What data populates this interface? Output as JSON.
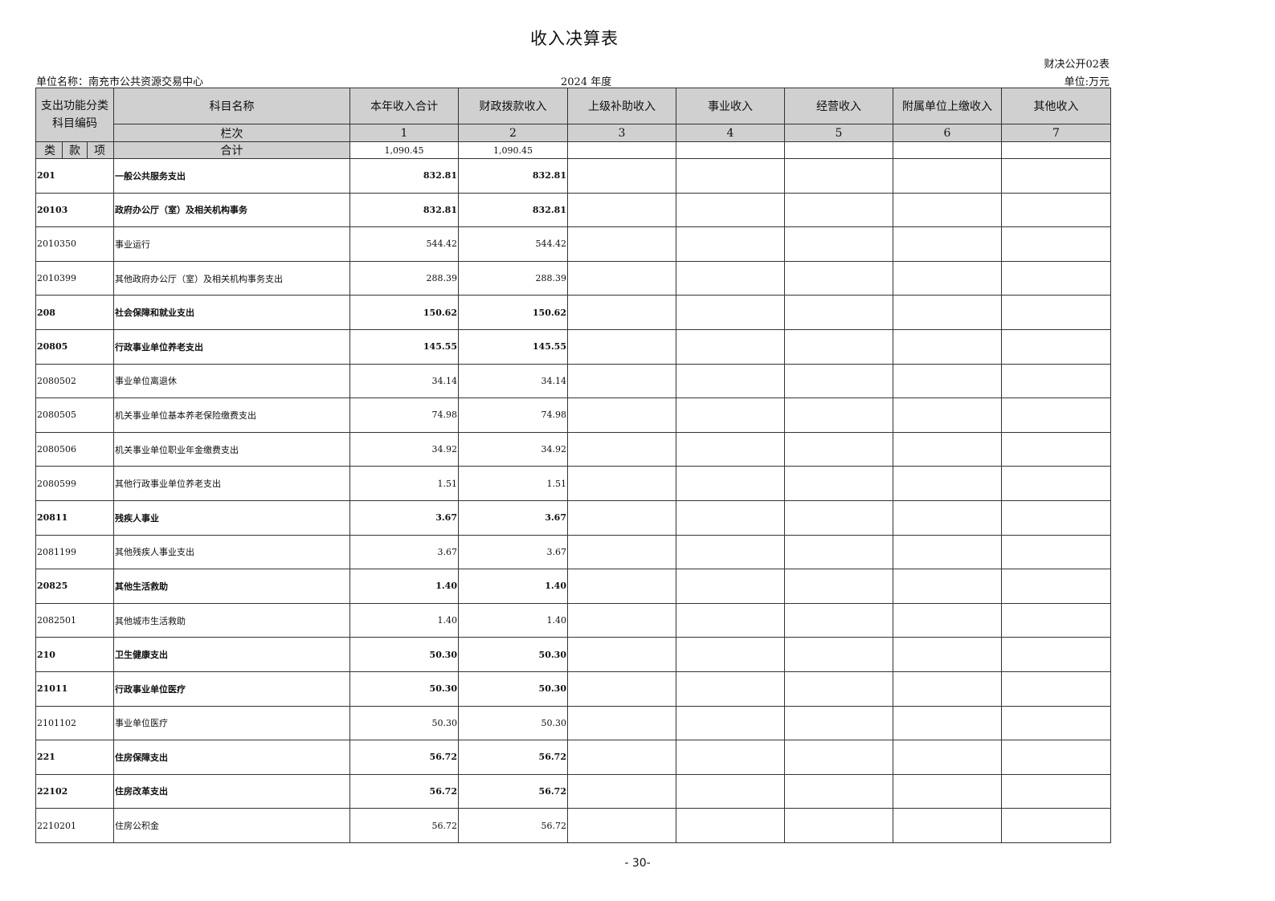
{
  "title": "收入决算表",
  "form_no": "财决公开02表",
  "unit_name": "单位名称：南充市公共资源交易中心",
  "year": "2024 年度",
  "unit": "单位:万元",
  "page_number": "- 30-",
  "header": {
    "code_header": "支出功能分类科目编码",
    "columns": [
      "科目名称",
      "本年收入合计",
      "财政拨款收入",
      "上级补助收入",
      "事业收入",
      "经营收入",
      "附属单位上缴收入",
      "其他收入"
    ],
    "column_index_label": "栏次",
    "column_indexes": [
      "1",
      "2",
      "3",
      "4",
      "5",
      "6",
      "7"
    ],
    "sub_codes": [
      "类",
      "款",
      "项"
    ],
    "total_label": "合计",
    "total_values": [
      "1,090.45",
      "1,090.45",
      "",
      "",
      "",
      "",
      ""
    ]
  },
  "rows": [
    {
      "code": "201",
      "name": "一般公共服务支出",
      "total": "832.81",
      "fiscal": "832.81",
      "bold": true
    },
    {
      "code": "20103",
      "name": "政府办公厅（室）及相关机构事务",
      "total": "832.81",
      "fiscal": "832.81",
      "bold": true
    },
    {
      "code": "2010350",
      "name": "事业运行",
      "total": "544.42",
      "fiscal": "544.42",
      "bold": false
    },
    {
      "code": "2010399",
      "name": "其他政府办公厅（室）及相关机构事务支出",
      "total": "288.39",
      "fiscal": "288.39",
      "bold": false
    },
    {
      "code": "208",
      "name": "社会保障和就业支出",
      "total": "150.62",
      "fiscal": "150.62",
      "bold": true
    },
    {
      "code": "20805",
      "name": "行政事业单位养老支出",
      "total": "145.55",
      "fiscal": "145.55",
      "bold": true
    },
    {
      "code": "2080502",
      "name": "事业单位离退休",
      "total": "34.14",
      "fiscal": "34.14",
      "bold": false
    },
    {
      "code": "2080505",
      "name": "机关事业单位基本养老保险缴费支出",
      "total": "74.98",
      "fiscal": "74.98",
      "bold": false
    },
    {
      "code": "2080506",
      "name": "机关事业单位职业年金缴费支出",
      "total": "34.92",
      "fiscal": "34.92",
      "bold": false
    },
    {
      "code": "2080599",
      "name": "其他行政事业单位养老支出",
      "total": "1.51",
      "fiscal": "1.51",
      "bold": false
    },
    {
      "code": "20811",
      "name": "残疾人事业",
      "total": "3.67",
      "fiscal": "3.67",
      "bold": true
    },
    {
      "code": "2081199",
      "name": "其他残疾人事业支出",
      "total": "3.67",
      "fiscal": "3.67",
      "bold": false
    },
    {
      "code": "20825",
      "name": "其他生活救助",
      "total": "1.40",
      "fiscal": "1.40",
      "bold": true
    },
    {
      "code": "2082501",
      "name": "其他城市生活救助",
      "total": "1.40",
      "fiscal": "1.40",
      "bold": false
    },
    {
      "code": "210",
      "name": "卫生健康支出",
      "total": "50.30",
      "fiscal": "50.30",
      "bold": true
    },
    {
      "code": "21011",
      "name": "行政事业单位医疗",
      "total": "50.30",
      "fiscal": "50.30",
      "bold": true
    },
    {
      "code": "2101102",
      "name": "事业单位医疗",
      "total": "50.30",
      "fiscal": "50.30",
      "bold": false
    },
    {
      "code": "221",
      "name": "住房保障支出",
      "total": "56.72",
      "fiscal": "56.72",
      "bold": true
    },
    {
      "code": "22102",
      "name": "住房改革支出",
      "total": "56.72",
      "fiscal": "56.72",
      "bold": true
    },
    {
      "code": "2210201",
      "name": "住房公积金",
      "total": "56.72",
      "fiscal": "56.72",
      "bold": false
    }
  ]
}
